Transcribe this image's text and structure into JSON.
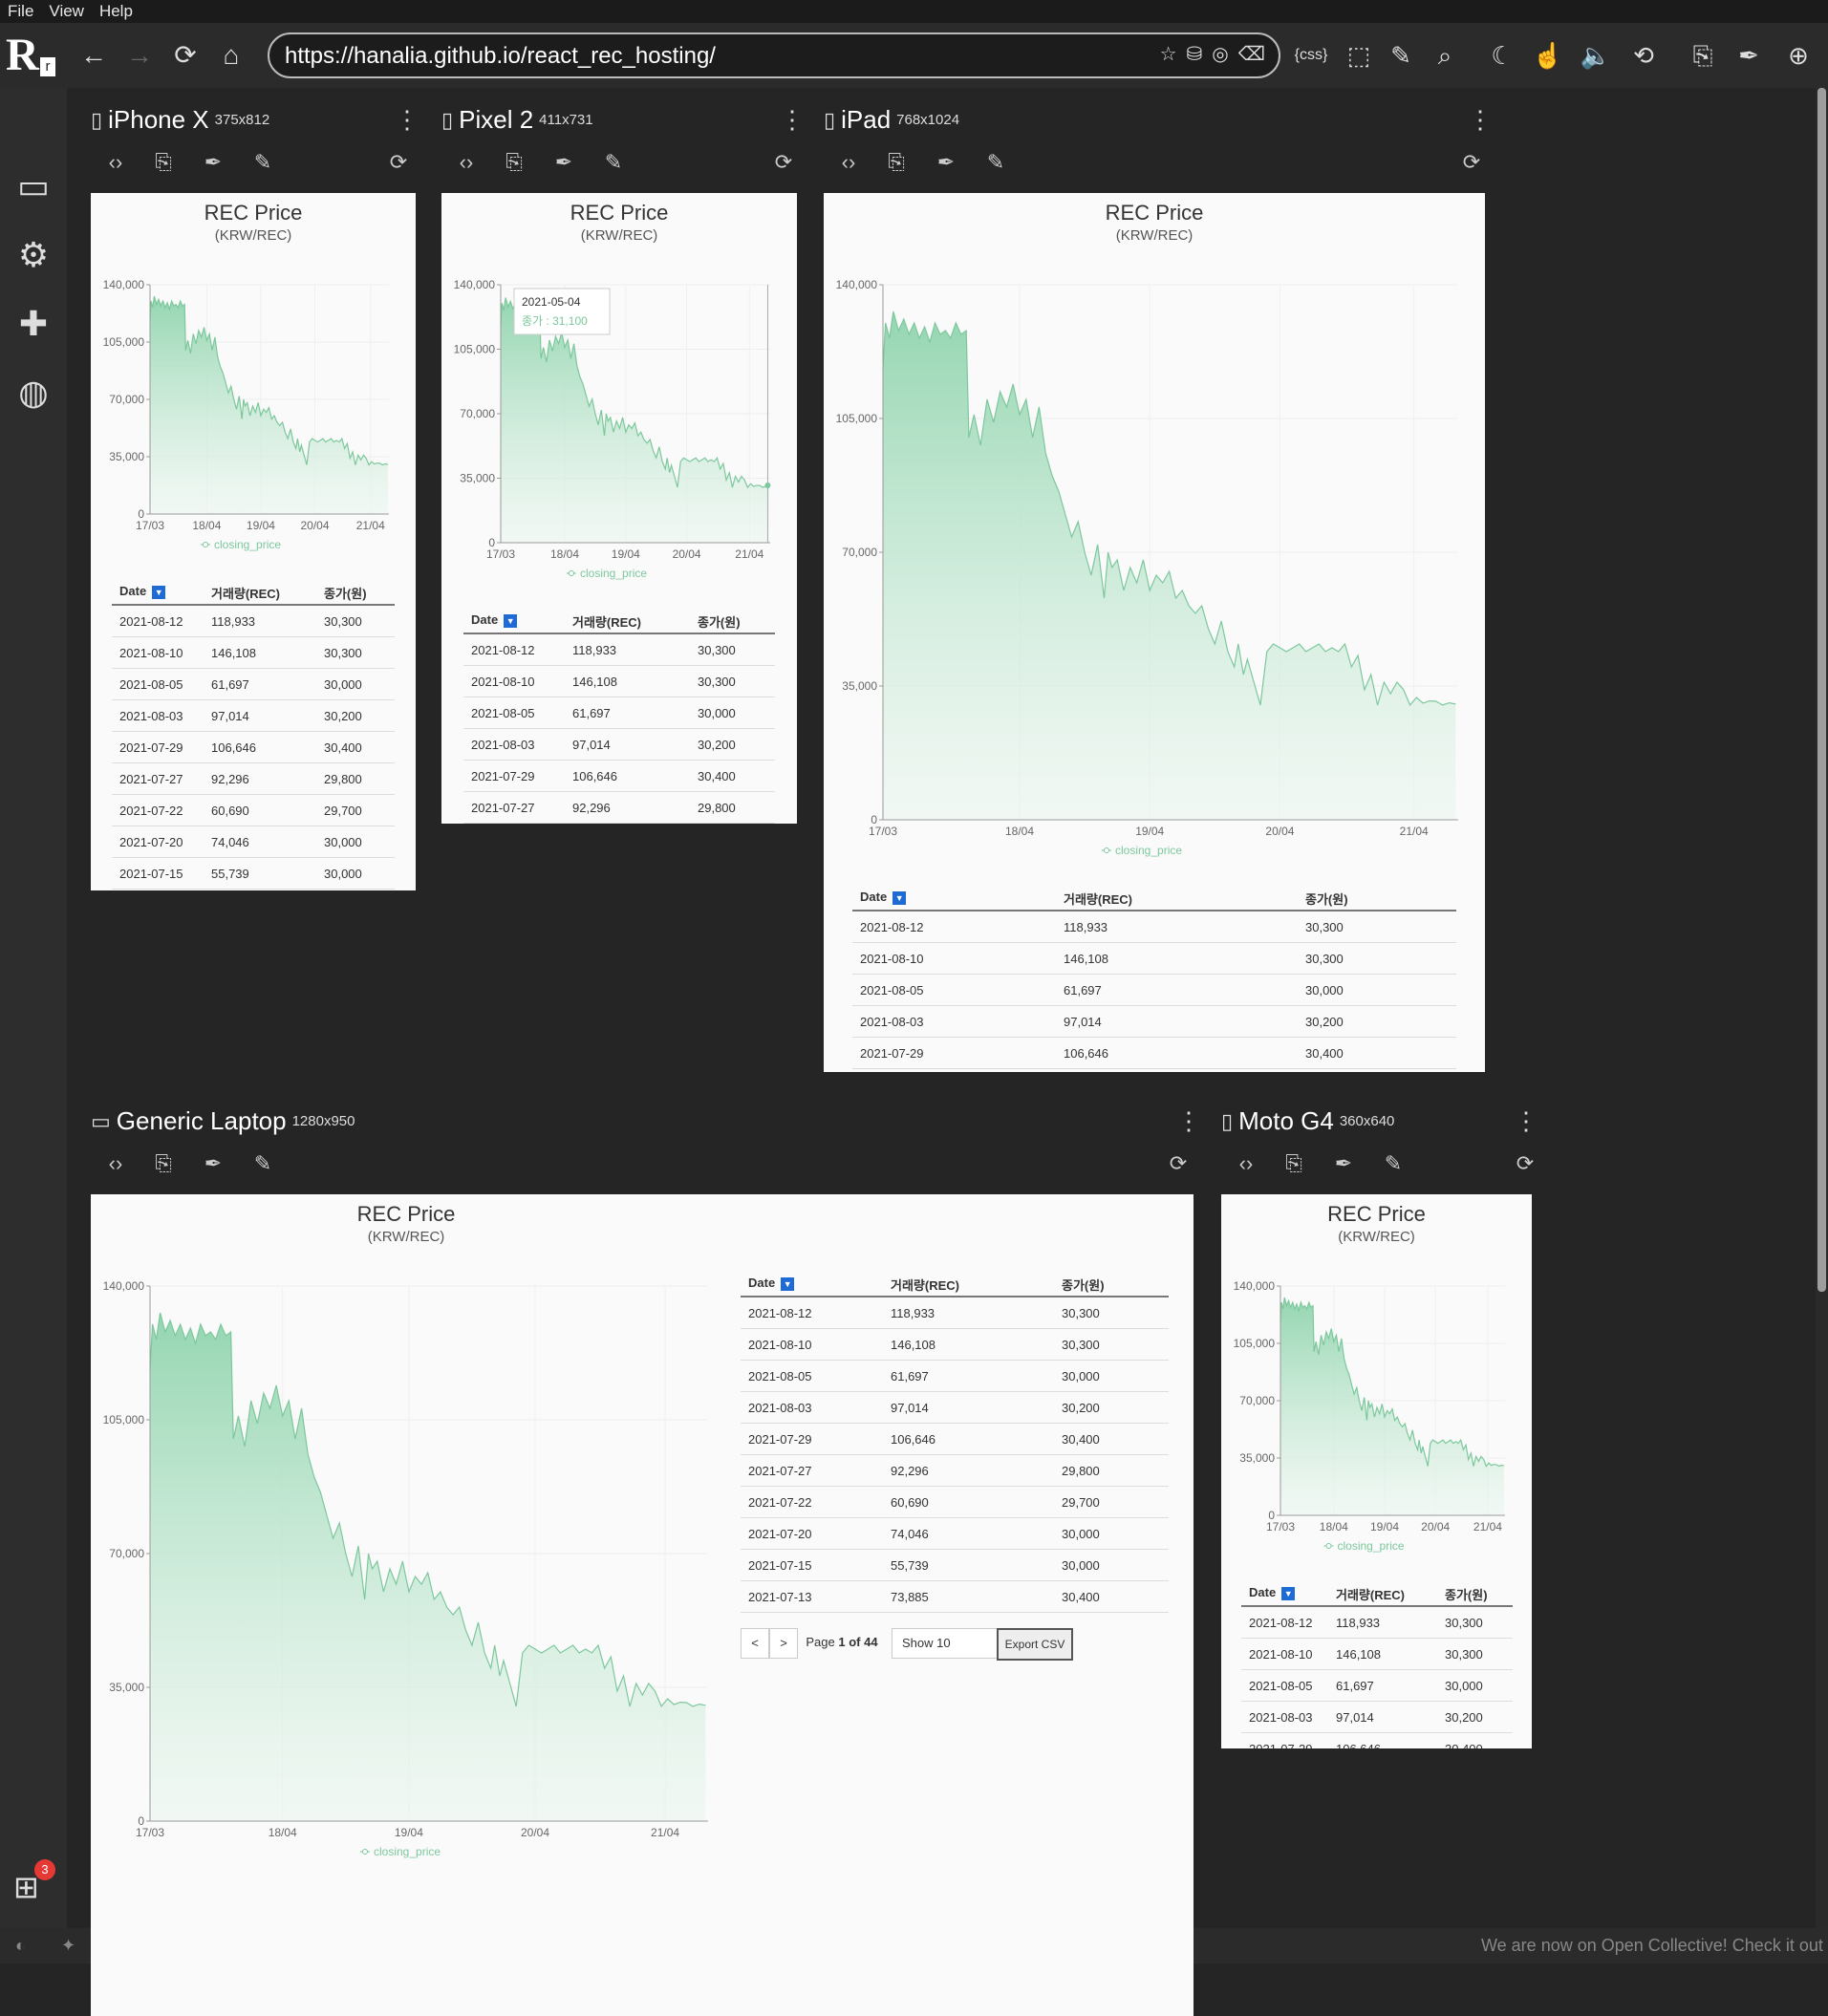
{
  "menu": [
    "File",
    "View",
    "Help"
  ],
  "url": "https://hanalia.github.io/react_rec_hosting/",
  "devices": [
    {
      "name": "iPhone X",
      "size": "375x812"
    },
    {
      "name": "Pixel 2",
      "size": "411x731"
    },
    {
      "name": "iPad",
      "size": "768x1024"
    },
    {
      "name": "Generic Laptop",
      "size": "1280x950"
    },
    {
      "name": "Moto G4",
      "size": "360x640"
    }
  ],
  "page": {
    "title": "REC Price",
    "subtitle": "(KRW/REC)",
    "legend": "closing_price",
    "tooltip": {
      "date": "2021-05-04",
      "label": "종가 : 31,100"
    },
    "table_headers": [
      "Date",
      "거래량(REC)",
      "종가(원)"
    ],
    "rows": [
      [
        "2021-08-12",
        "118,933",
        "30,300"
      ],
      [
        "2021-08-10",
        "146,108",
        "30,300"
      ],
      [
        "2021-08-05",
        "61,697",
        "30,000"
      ],
      [
        "2021-08-03",
        "97,014",
        "30,200"
      ],
      [
        "2021-07-29",
        "106,646",
        "30,400"
      ],
      [
        "2021-07-27",
        "92,296",
        "29,800"
      ],
      [
        "2021-07-22",
        "60,690",
        "29,700"
      ],
      [
        "2021-07-20",
        "74,046",
        "30,000"
      ],
      [
        "2021-07-15",
        "55,739",
        "30,000"
      ],
      [
        "2021-07-13",
        "73,885",
        "30,400"
      ]
    ],
    "pagination": {
      "prev": "<",
      "next": ">",
      "page_prefix": "Page",
      "page_num": "1",
      "of": "of",
      "page_total": "44",
      "show": "Show 10",
      "export": "Export CSV"
    }
  },
  "chart_data": {
    "type": "area",
    "title": "REC Price",
    "subtitle": "(KRW/REC)",
    "series_name": "closing_price",
    "x_ticks": [
      "17/03",
      "18/04",
      "19/04",
      "20/04",
      "21/04"
    ],
    "y_ticks": [
      0,
      35000,
      70000,
      105000,
      140000
    ],
    "ylim": [
      0,
      140000
    ],
    "xlim": [
      "2017-03",
      "2021-08"
    ],
    "x": [
      2017.2,
      2017.22,
      2017.25,
      2017.28,
      2017.32,
      2017.36,
      2017.4,
      2017.44,
      2017.48,
      2017.52,
      2017.56,
      2017.6,
      2017.64,
      2017.68,
      2017.72,
      2017.76,
      2017.8,
      2017.84,
      2017.86,
      2017.9,
      2017.95,
      2018.0,
      2018.05,
      2018.1,
      2018.15,
      2018.2,
      2018.25,
      2018.3,
      2018.35,
      2018.4,
      2018.45,
      2018.5,
      2018.55,
      2018.6,
      2018.65,
      2018.7,
      2018.75,
      2018.8,
      2018.85,
      2018.9,
      2018.93,
      2018.96,
      2019.0,
      2019.05,
      2019.1,
      2019.15,
      2019.2,
      2019.25,
      2019.3,
      2019.35,
      2019.4,
      2019.45,
      2019.5,
      2019.55,
      2019.6,
      2019.65,
      2019.7,
      2019.75,
      2019.8,
      2019.85,
      2019.9,
      2019.93,
      2019.97,
      2020.0,
      2020.05,
      2020.1,
      2020.15,
      2020.2,
      2020.25,
      2020.3,
      2020.35,
      2020.4,
      2020.45,
      2020.5,
      2020.55,
      2020.6,
      2020.65,
      2020.7,
      2020.75,
      2020.8,
      2020.85,
      2020.9,
      2020.95,
      2021.0,
      2021.05,
      2021.1,
      2021.15,
      2021.2,
      2021.25,
      2021.3,
      2021.35,
      2021.4,
      2021.45,
      2021.5,
      2021.55,
      2021.6
    ],
    "y": [
      118000,
      130000,
      126000,
      133000,
      128000,
      131000,
      127000,
      130000,
      126000,
      129000,
      125000,
      130000,
      127000,
      128000,
      126000,
      130000,
      127000,
      128000,
      100000,
      106000,
      98000,
      110000,
      104000,
      112000,
      108000,
      114000,
      106000,
      110000,
      100000,
      108000,
      96000,
      90000,
      86000,
      80000,
      74000,
      78000,
      70000,
      64000,
      72000,
      58000,
      70000,
      66000,
      68000,
      60000,
      66000,
      62000,
      68000,
      60000,
      64000,
      62000,
      65000,
      58000,
      60000,
      56000,
      54000,
      56000,
      50000,
      46000,
      52000,
      44000,
      40000,
      46000,
      38000,
      42000,
      36000,
      30000,
      44000,
      46000,
      45000,
      44000,
      45000,
      46000,
      44000,
      45000,
      46000,
      44000,
      45000,
      44000,
      46000,
      40000,
      43000,
      34000,
      38000,
      30000,
      36000,
      33000,
      36000,
      34000,
      30000,
      32000,
      30500,
      31100,
      31000,
      30000,
      30600,
      30300
    ]
  }
}
